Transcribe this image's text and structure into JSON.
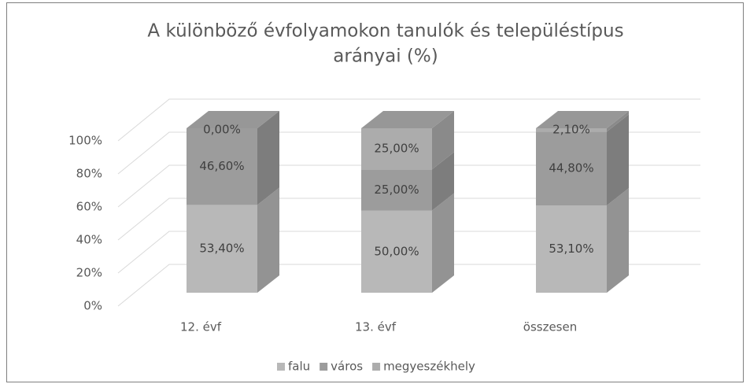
{
  "chart_data": {
    "type": "bar3d_stacked",
    "title": [
      "A különböző évfolyamokon tanulók és településtípus",
      "arányai (%)"
    ],
    "categories": [
      "12. évf",
      "13. évf",
      "összesen"
    ],
    "series": [
      {
        "name": "falu",
        "color": "#b8b8b8",
        "values": [
          53.4,
          50,
          53.1
        ],
        "value_labels": [
          "53,40%",
          "50,00%",
          "53,10%"
        ]
      },
      {
        "name": "város",
        "color": "#9c9c9c",
        "values": [
          46.6,
          25,
          44.8
        ],
        "value_labels": [
          "46,60%",
          "25,00%",
          "44,80%"
        ]
      },
      {
        "name": "megyeszékhely",
        "color": "#acacac",
        "values": [
          0,
          25,
          2.1
        ],
        "value_labels": [
          "0,00%",
          "25,00%",
          "2,10%"
        ]
      }
    ],
    "ylim": [
      0,
      100
    ],
    "yticks": [
      {
        "value": 0,
        "label": "0%"
      },
      {
        "value": 20,
        "label": "20%"
      },
      {
        "value": 40,
        "label": "40%"
      },
      {
        "value": 60,
        "label": "60%"
      },
      {
        "value": 80,
        "label": "80%"
      },
      {
        "value": 100,
        "label": "100%"
      }
    ],
    "grid": true,
    "legend": "bottom"
  }
}
